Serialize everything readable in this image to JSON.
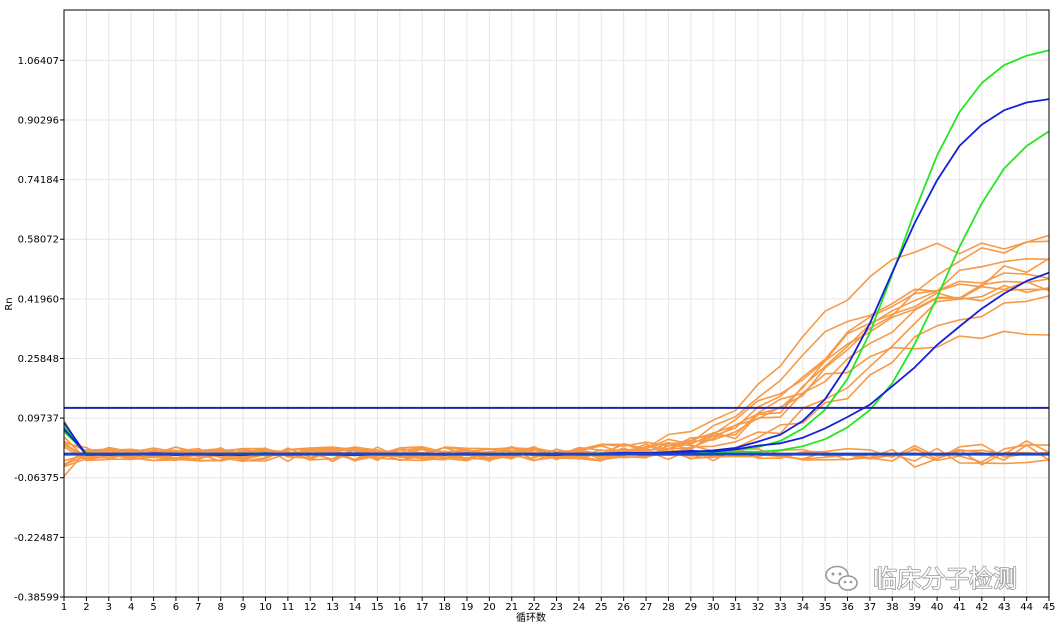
{
  "chart_data": {
    "type": "line",
    "xlabel": "循环数",
    "ylabel": "Rn",
    "xlim": [
      1,
      45
    ],
    "ylim": [
      -0.38599,
      1.2
    ],
    "x": [
      1,
      2,
      3,
      4,
      5,
      6,
      7,
      8,
      9,
      10,
      11,
      12,
      13,
      14,
      15,
      16,
      17,
      18,
      19,
      20,
      21,
      22,
      23,
      24,
      25,
      26,
      27,
      28,
      29,
      30,
      31,
      32,
      33,
      34,
      35,
      36,
      37,
      38,
      39,
      40,
      41,
      42,
      43,
      44,
      45
    ],
    "y_ticks": [
      {
        "value": -0.38599,
        "label": "-0.38599"
      },
      {
        "value": -0.22487,
        "label": "-0.22487"
      },
      {
        "value": -0.06375,
        "label": "-0.06375"
      },
      {
        "value": 0.09737,
        "label": "0.09737"
      },
      {
        "value": 0.25848,
        "label": "0.25848"
      },
      {
        "value": 0.4196,
        "label": "0.41960"
      },
      {
        "value": 0.58072,
        "label": "0.58072"
      },
      {
        "value": 0.74184,
        "label": "0.74184"
      },
      {
        "value": 0.90296,
        "label": "0.90296"
      },
      {
        "value": 1.06407,
        "label": "1.06407"
      }
    ],
    "grid": true,
    "threshold": {
      "value": 0.125,
      "color": "#2222aa"
    },
    "baseline": {
      "value": 0.0,
      "color": "#1a44cc"
    },
    "series_colors": {
      "orange": "#f79a48",
      "green": "#22e822",
      "blue": "#1420d8"
    },
    "amplified_series": [
      {
        "color": "green",
        "plateau": 1.11,
        "midpoint": 38.4,
        "slope": 0.62
      },
      {
        "color": "green",
        "plateau": 0.93,
        "midpoint": 40.3,
        "slope": 0.58
      },
      {
        "color": "blue",
        "plateau": 0.98,
        "midpoint": 38.0,
        "slope": 0.57
      },
      {
        "color": "blue",
        "plateau": 0.54,
        "midpoint": 39.6,
        "slope": 0.42
      },
      {
        "color": "orange",
        "plateau": 0.58,
        "midpoint": 33.6,
        "slope": 0.46
      },
      {
        "color": "orange",
        "plateau": 0.46,
        "midpoint": 34.2,
        "slope": 0.42
      },
      {
        "color": "orange",
        "plateau": 0.5,
        "midpoint": 34.8,
        "slope": 0.45
      },
      {
        "color": "orange",
        "plateau": 0.45,
        "midpoint": 33.2,
        "slope": 0.5
      },
      {
        "color": "orange",
        "plateau": 0.52,
        "midpoint": 35.5,
        "slope": 0.45
      },
      {
        "color": "orange",
        "plateau": 0.6,
        "midpoint": 36.4,
        "slope": 0.4
      },
      {
        "color": "orange",
        "plateau": 0.48,
        "midpoint": 35.9,
        "slope": 0.42
      },
      {
        "color": "orange",
        "plateau": 0.44,
        "midpoint": 34.5,
        "slope": 0.48
      },
      {
        "color": "orange",
        "plateau": 0.33,
        "midpoint": 34.0,
        "slope": 0.44
      },
      {
        "color": "orange",
        "plateau": 0.42,
        "midpoint": 37.0,
        "slope": 0.45
      },
      {
        "color": "orange",
        "plateau": 0.55,
        "midpoint": 37.6,
        "slope": 0.4
      }
    ],
    "flat_series_count": 6,
    "watermark": "临床分子检测"
  }
}
